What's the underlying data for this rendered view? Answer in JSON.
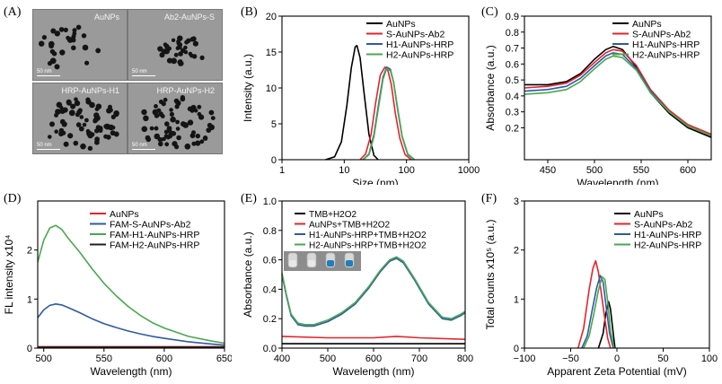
{
  "panel_labels": [
    "(A)",
    "(B)",
    "(C)",
    "(D)",
    "(E)",
    "(F)"
  ],
  "tem": {
    "images": [
      {
        "caption": "AuNPs",
        "scale": "50 nm"
      },
      {
        "caption": "Ab2-AuNPs-S",
        "scale": "50 nm"
      },
      {
        "caption": "HRP-AuNPs-H1",
        "scale": "50 nm"
      },
      {
        "caption": "HRP-AuNPs-H2",
        "scale": "50 nm"
      }
    ]
  },
  "inset_photo": {
    "tubes": [
      "clear",
      "clear",
      "blue",
      "blue"
    ]
  },
  "chart_data": [
    {
      "id": "B",
      "type": "line",
      "xscale": "log",
      "xlabel": "Size (nm)",
      "ylabel": "Intensity (a.u.)",
      "xlim": [
        1,
        1000
      ],
      "ylim": [
        0,
        20
      ],
      "xticks": [
        1,
        10,
        100,
        1000
      ],
      "xtick_labels": [
        "1",
        "10",
        "100",
        "1000"
      ],
      "yticks": [
        0,
        5,
        10,
        15,
        20
      ],
      "ytick_labels": [
        "0",
        "5",
        "10",
        "15",
        "20"
      ],
      "legend_position": "top-right",
      "series": [
        {
          "name": "AuNPs",
          "color": "#000000",
          "x": [
            5,
            7,
            9,
            11,
            13,
            15,
            16,
            18,
            21,
            25,
            30,
            35
          ],
          "y": [
            0,
            0.4,
            2.5,
            7.5,
            12.8,
            15.7,
            15.9,
            14.2,
            9,
            3.5,
            0.6,
            0
          ]
        },
        {
          "name": "S-AuNPs-Ab2",
          "color": "#e8232a",
          "x": [
            18,
            22,
            27,
            32,
            38,
            45,
            50,
            57,
            66,
            78,
            95,
            120
          ],
          "y": [
            0,
            0.8,
            3.5,
            8,
            11.8,
            12.9,
            12.5,
            10.5,
            6.5,
            3,
            0.7,
            0
          ]
        },
        {
          "name": "H1-AuNPs-HRP",
          "color": "#2e5aa8",
          "x": [
            20,
            25,
            30,
            36,
            42,
            48,
            55,
            62,
            72,
            85,
            105,
            135
          ],
          "y": [
            0,
            0.8,
            3.5,
            8,
            11.5,
            12.9,
            12.6,
            10.8,
            7,
            3.2,
            0.7,
            0
          ]
        },
        {
          "name": "H2-AuNPs-HRP",
          "color": "#48a84f",
          "x": [
            20,
            25,
            30,
            36,
            42,
            48,
            55,
            62,
            72,
            85,
            105,
            135
          ],
          "y": [
            0,
            0.7,
            3.2,
            7.6,
            11.2,
            12.7,
            12.4,
            10.8,
            7.2,
            3.3,
            0.8,
            0
          ]
        }
      ]
    },
    {
      "id": "C",
      "type": "line",
      "xlabel": "Wavelength (nm)",
      "ylabel": "Absorbance (a.u.)",
      "xlim": [
        425,
        625
      ],
      "ylim": [
        0.0,
        0.9
      ],
      "xticks": [
        450,
        500,
        550,
        600
      ],
      "xtick_labels": [
        "450",
        "500",
        "550",
        "600"
      ],
      "yticks": [
        0.2,
        0.3,
        0.4,
        0.5,
        0.6,
        0.7,
        0.8,
        0.9
      ],
      "ytick_labels": [
        "0.2",
        "0.3",
        "0.4",
        "0.5",
        "0.6",
        "0.7",
        "0.8",
        "0.9"
      ],
      "legend_position": "top-right",
      "series": [
        {
          "name": "AuNPs",
          "color": "#000000",
          "x": [
            425,
            450,
            470,
            485,
            500,
            512,
            520,
            530,
            545,
            560,
            580,
            600,
            625
          ],
          "y": [
            0.47,
            0.47,
            0.49,
            0.54,
            0.63,
            0.69,
            0.71,
            0.69,
            0.58,
            0.42,
            0.29,
            0.2,
            0.14
          ]
        },
        {
          "name": "S-AuNPs-Ab2",
          "color": "#e8232a",
          "x": [
            425,
            450,
            470,
            485,
            500,
            512,
            520,
            530,
            545,
            560,
            580,
            600,
            625
          ],
          "y": [
            0.45,
            0.46,
            0.48,
            0.53,
            0.61,
            0.67,
            0.69,
            0.68,
            0.59,
            0.44,
            0.31,
            0.22,
            0.16
          ]
        },
        {
          "name": "H1-AuNPs-HRP",
          "color": "#2e5aa8",
          "x": [
            425,
            450,
            470,
            485,
            500,
            512,
            520,
            530,
            545,
            560,
            580,
            600,
            625
          ],
          "y": [
            0.43,
            0.44,
            0.46,
            0.51,
            0.59,
            0.65,
            0.67,
            0.66,
            0.57,
            0.43,
            0.3,
            0.21,
            0.15
          ]
        },
        {
          "name": "H2-AuNPs-HRP",
          "color": "#48a84f",
          "x": [
            425,
            450,
            470,
            485,
            500,
            512,
            520,
            530,
            545,
            560,
            580,
            600,
            625
          ],
          "y": [
            0.41,
            0.42,
            0.44,
            0.49,
            0.57,
            0.63,
            0.65,
            0.64,
            0.56,
            0.42,
            0.3,
            0.21,
            0.15
          ]
        }
      ]
    },
    {
      "id": "D",
      "type": "line",
      "xlabel": "Wavelength (nm)",
      "ylabel": "FL intensity x10⁴",
      "xlim": [
        495,
        650
      ],
      "ylim": [
        0,
        3
      ],
      "xticks": [
        500,
        550,
        600,
        650
      ],
      "xtick_labels": [
        "500",
        "550",
        "600",
        "650"
      ],
      "yticks": [
        0,
        1,
        2
      ],
      "ytick_labels": [
        "0",
        "1",
        "2"
      ],
      "legend_position": "top-right",
      "series": [
        {
          "name": "AuNPs",
          "color": "#e8232a",
          "x": [
            495,
            650
          ],
          "y": [
            0.03,
            0.03
          ]
        },
        {
          "name": "FAM-S-AuNPs-Ab2",
          "color": "#2e5aa8",
          "x": [
            495,
            500,
            505,
            510,
            515,
            520,
            530,
            540,
            550,
            560,
            570,
            580,
            590,
            600,
            620,
            640,
            650
          ],
          "y": [
            0.62,
            0.78,
            0.87,
            0.9,
            0.88,
            0.83,
            0.72,
            0.6,
            0.5,
            0.42,
            0.35,
            0.29,
            0.24,
            0.2,
            0.13,
            0.08,
            0.06
          ]
        },
        {
          "name": "FAM-H1-AuNPs-HRP",
          "color": "#48a84f",
          "x": [
            495,
            500,
            505,
            510,
            515,
            520,
            530,
            540,
            550,
            560,
            570,
            580,
            590,
            600,
            620,
            640,
            650
          ],
          "y": [
            1.75,
            2.2,
            2.45,
            2.5,
            2.42,
            2.25,
            1.95,
            1.62,
            1.32,
            1.07,
            0.85,
            0.67,
            0.52,
            0.41,
            0.24,
            0.14,
            0.1
          ]
        },
        {
          "name": "FAM-H2-AuNPs-HRP",
          "color": "#1f1f1f",
          "x": [
            495,
            650
          ],
          "y": [
            0.02,
            0.02
          ]
        }
      ]
    },
    {
      "id": "E",
      "type": "line",
      "xlabel": "Wavelength (nm)",
      "ylabel": "Absorbance (a.u.)",
      "xlim": [
        400,
        800
      ],
      "ylim": [
        0.0,
        1.0
      ],
      "xticks": [
        400,
        500,
        600,
        700,
        800
      ],
      "xtick_labels": [
        "400",
        "500",
        "600",
        "700",
        "800"
      ],
      "yticks": [
        0.0,
        0.2,
        0.4,
        0.6,
        0.8,
        1.0
      ],
      "ytick_labels": [
        "0.0",
        "0.2",
        "0.4",
        "0.6",
        "0.8",
        "1.0"
      ],
      "legend_position": "top-right",
      "series": [
        {
          "name": "TMB+H2O2",
          "color": "#000000",
          "x": [
            400,
            800
          ],
          "y": [
            0.03,
            0.03
          ]
        },
        {
          "name": "AuNPs+TMB+H2O2",
          "color": "#e8232a",
          "x": [
            400,
            500,
            600,
            650,
            700,
            800
          ],
          "y": [
            0.08,
            0.07,
            0.07,
            0.08,
            0.07,
            0.06
          ]
        },
        {
          "name": "H1-AuNPs-HRP+TMB+H2O2",
          "color": "#2e5aa8",
          "x": [
            400,
            410,
            420,
            435,
            450,
            470,
            500,
            530,
            560,
            590,
            615,
            635,
            650,
            665,
            690,
            720,
            750,
            770,
            790,
            800
          ],
          "y": [
            0.5,
            0.35,
            0.22,
            0.16,
            0.15,
            0.15,
            0.18,
            0.23,
            0.3,
            0.41,
            0.52,
            0.59,
            0.61,
            0.58,
            0.46,
            0.3,
            0.2,
            0.19,
            0.22,
            0.24
          ]
        },
        {
          "name": "H2-AuNPs-HRP+TMB+H2O2",
          "color": "#48a84f",
          "x": [
            400,
            410,
            420,
            435,
            450,
            470,
            500,
            530,
            560,
            590,
            615,
            635,
            650,
            665,
            690,
            720,
            750,
            770,
            790,
            800
          ],
          "y": [
            0.51,
            0.36,
            0.23,
            0.17,
            0.16,
            0.16,
            0.19,
            0.24,
            0.31,
            0.42,
            0.53,
            0.6,
            0.62,
            0.59,
            0.47,
            0.31,
            0.21,
            0.2,
            0.23,
            0.25
          ]
        }
      ]
    },
    {
      "id": "F",
      "type": "line",
      "xlabel": "Apparent Zeta Potential (mV)",
      "ylabel": "Total counts x10⁵ (a.u.)",
      "xlim": [
        -100,
        100
      ],
      "ylim": [
        0,
        3
      ],
      "xticks": [
        -100,
        -50,
        0,
        50,
        100
      ],
      "xtick_labels": [
        "−100",
        "−50",
        "0",
        "50",
        "100"
      ],
      "yticks": [
        0,
        1,
        2,
        3
      ],
      "ytick_labels": [
        "0",
        "1",
        "2",
        "3"
      ],
      "legend_position": "top-right",
      "series": [
        {
          "name": "AuNPs",
          "color": "#000000",
          "x": [
            -20,
            -15,
            -12,
            -9,
            -7,
            -4,
            -2
          ],
          "y": [
            0,
            0.3,
            0.7,
            0.95,
            0.8,
            0.3,
            0
          ]
        },
        {
          "name": "S-AuNPs-Ab2",
          "color": "#e8232a",
          "x": [
            -42,
            -36,
            -30,
            -26,
            -23,
            -20,
            -15,
            -10,
            -7
          ],
          "y": [
            0,
            0.4,
            1.2,
            1.62,
            1.78,
            1.55,
            0.85,
            0.2,
            0
          ]
        },
        {
          "name": "H1-AuNPs-HRP",
          "color": "#2e5aa8",
          "x": [
            -38,
            -32,
            -27,
            -22,
            -18,
            -15,
            -12,
            -8,
            -4
          ],
          "y": [
            0,
            0.25,
            0.75,
            1.22,
            1.48,
            1.35,
            0.9,
            0.3,
            0
          ]
        },
        {
          "name": "H2-AuNPs-HRP",
          "color": "#48a84f",
          "x": [
            -36,
            -30,
            -25,
            -20,
            -16,
            -13,
            -10,
            -7,
            -3
          ],
          "y": [
            0,
            0.25,
            0.7,
            1.18,
            1.45,
            1.4,
            0.95,
            0.35,
            0
          ]
        }
      ]
    }
  ]
}
